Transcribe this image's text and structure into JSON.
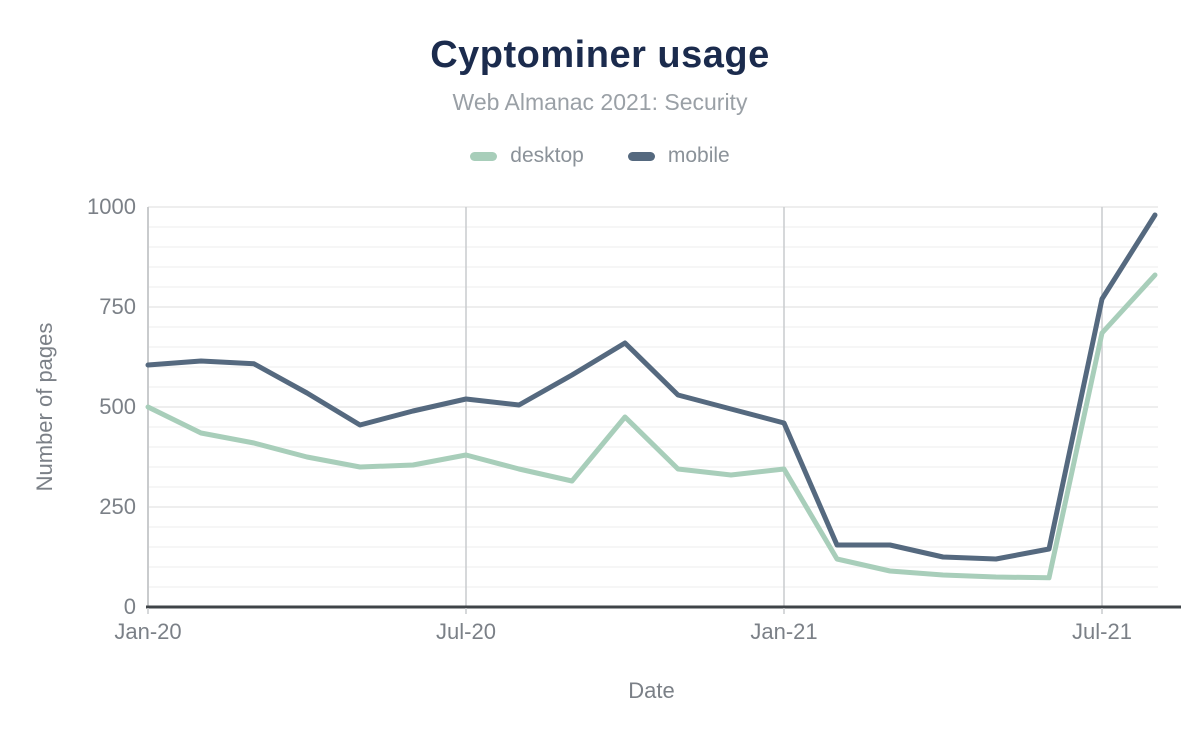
{
  "title": "Cyptominer usage",
  "subtitle": "Web Almanac 2021: Security",
  "legend": {
    "items": [
      {
        "label": "desktop"
      },
      {
        "label": "mobile"
      }
    ]
  },
  "colors": {
    "title": "#1b2b4d",
    "subtitle": "#9aa0a6",
    "legend_text": "#8b9299",
    "axis_text": "#7b8087",
    "axis_line": "#3f4448",
    "y_axis_line": "#c9cbcd",
    "grid_vertical": "#c9cbcd",
    "grid_major": "#e9e9e9",
    "grid_minor": "#f4f4f4",
    "desktop": "#a8ceba",
    "mobile": "#55697f"
  },
  "chart_data": {
    "type": "line",
    "title": "Cyptominer usage",
    "subtitle": "Web Almanac 2021: Security",
    "xlabel": "Date",
    "ylabel": "Number of pages",
    "x": [
      "Jan-20",
      "Feb-20",
      "Mar-20",
      "Apr-20",
      "May-20",
      "Jun-20",
      "Jul-20",
      "Aug-20",
      "Sep-20",
      "Oct-20",
      "Nov-20",
      "Dec-20",
      "Jan-21",
      "Feb-21",
      "Mar-21",
      "Apr-21",
      "May-21",
      "Jun-21",
      "Jul-21",
      "Aug-21"
    ],
    "series": [
      {
        "name": "desktop",
        "color": "#a8ceba",
        "values": [
          500,
          435,
          410,
          375,
          350,
          355,
          380,
          345,
          315,
          475,
          345,
          330,
          345,
          120,
          90,
          80,
          75,
          73,
          685,
          830
        ]
      },
      {
        "name": "mobile",
        "color": "#55697f",
        "values": [
          605,
          615,
          608,
          535,
          455,
          490,
          520,
          505,
          580,
          660,
          530,
          495,
          460,
          155,
          155,
          125,
          120,
          145,
          770,
          980
        ]
      }
    ],
    "ylim": [
      0,
      1000
    ],
    "y_major_ticks": [
      0,
      250,
      500,
      750,
      1000
    ],
    "y_minor_step": 50,
    "x_tick_labels": [
      "Jan-20",
      "Jul-20",
      "Jan-21",
      "Jul-21"
    ],
    "x_tick_indices": [
      0,
      6,
      12,
      18
    ],
    "grid": true,
    "legend_position": "top"
  }
}
